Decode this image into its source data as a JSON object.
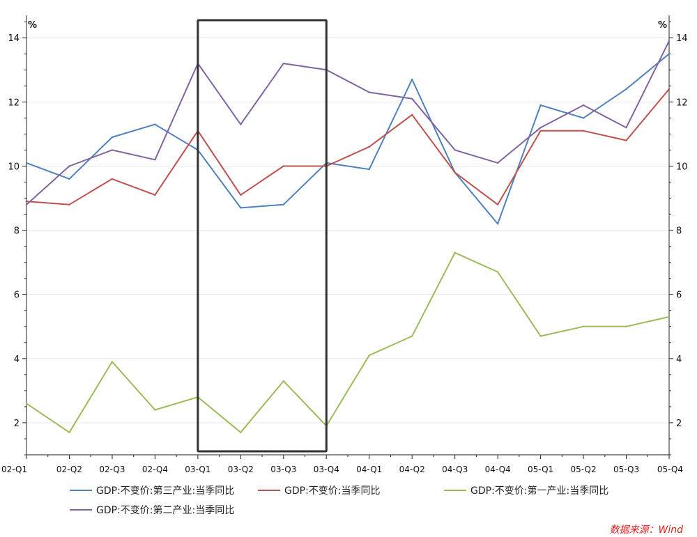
{
  "chart_data": {
    "type": "line",
    "title": "",
    "unit_left": "%",
    "unit_right": "%",
    "categories": [
      "02-Q1",
      "02-Q2",
      "02-Q3",
      "02-Q4",
      "03-Q1",
      "03-Q2",
      "03-Q3",
      "03-Q4",
      "04-Q1",
      "04-Q2",
      "04-Q3",
      "04-Q4",
      "05-Q1",
      "05-Q2",
      "05-Q3",
      "05-Q4"
    ],
    "ylim": [
      1,
      14.7
    ],
    "yticks": [
      "2",
      "4",
      "6",
      "8",
      "10",
      "12",
      "14"
    ],
    "highlight_range": [
      "03-Q1",
      "03-Q4"
    ],
    "series": [
      {
        "name": "GDP:不变价:第三产业:当季同比",
        "color": "#4f81bd",
        "values": [
          10.1,
          9.6,
          10.9,
          11.3,
          10.5,
          8.7,
          8.8,
          10.1,
          9.9,
          12.7,
          9.8,
          8.2,
          11.9,
          11.5,
          12.4,
          13.5
        ]
      },
      {
        "name": "GDP:不变价:当季同比",
        "color": "#c0504d",
        "values": [
          8.9,
          8.8,
          9.6,
          9.1,
          11.1,
          9.1,
          10.0,
          10.0,
          10.6,
          11.6,
          9.8,
          8.8,
          11.1,
          11.1,
          10.8,
          12.4
        ]
      },
      {
        "name": "GDP:不变价:第一产业:当季同比",
        "color": "#9bbb59",
        "values": [
          2.6,
          1.7,
          3.9,
          2.4,
          2.8,
          1.7,
          3.3,
          1.9,
          4.1,
          4.7,
          7.3,
          6.7,
          4.7,
          5.0,
          5.0,
          5.3
        ]
      },
      {
        "name": "GDP:不变价:第二产业:当季同比",
        "color": "#8064a2",
        "values": [
          8.8,
          10.0,
          10.5,
          10.2,
          13.2,
          11.3,
          13.2,
          13.0,
          12.3,
          12.1,
          10.5,
          10.1,
          11.2,
          11.9,
          11.2,
          13.9
        ]
      }
    ]
  },
  "source_text": "数据来源：Wind"
}
